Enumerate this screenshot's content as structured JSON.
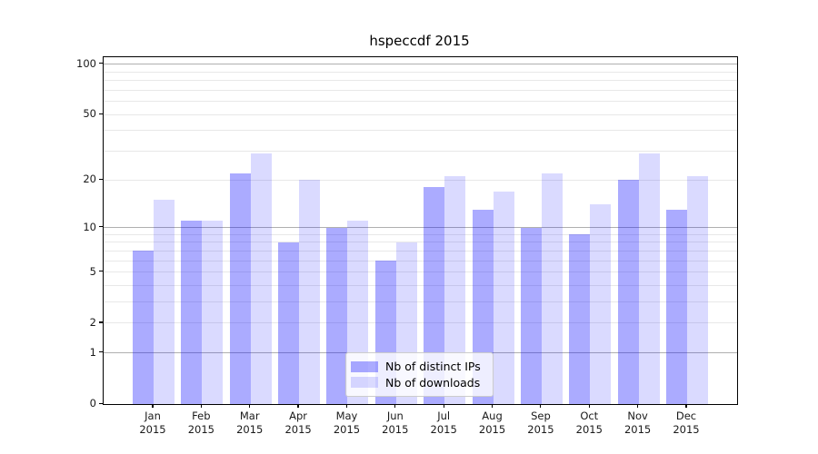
{
  "chart_data": {
    "type": "bar",
    "title": "hspeccdf 2015",
    "months": [
      "Jan",
      "Feb",
      "Mar",
      "Apr",
      "May",
      "Jun",
      "Jul",
      "Aug",
      "Sep",
      "Oct",
      "Nov",
      "Dec"
    ],
    "year_label": "2015",
    "series": [
      {
        "key": "distinct-ips",
        "name": "Nb of distinct IPs",
        "color": "#0000ff",
        "alpha": 0.33,
        "values": [
          7,
          11,
          22,
          8,
          10,
          6,
          18,
          13,
          10,
          9,
          20,
          13
        ]
      },
      {
        "key": "downloads",
        "name": "Nb of downloads",
        "color": "#0000ff",
        "alpha": 0.145,
        "values": [
          15,
          11,
          29,
          20,
          11,
          8,
          21,
          17,
          22,
          14,
          29,
          21
        ]
      }
    ],
    "y_axis": {
      "scale": "log1p",
      "ticks": [
        0,
        1,
        2,
        5,
        10,
        20,
        50,
        100
      ],
      "max": 110,
      "grid_major": [
        1,
        10,
        100
      ],
      "grid_minor": [
        2,
        3,
        4,
        5,
        6,
        7,
        8,
        9,
        20,
        30,
        40,
        50,
        60,
        70,
        80,
        90
      ]
    },
    "legend": {
      "position": "lower center"
    },
    "layout_hints": {
      "grid": "on",
      "bar_groups_per_month": 2
    }
  },
  "colors": {
    "background": "#ffffff",
    "spine": "#000000",
    "grid_major": "#b0b0b0",
    "grid_minor": "#e8e8e8",
    "text": "#1a1a1a",
    "legend_border": "#cccccc"
  }
}
